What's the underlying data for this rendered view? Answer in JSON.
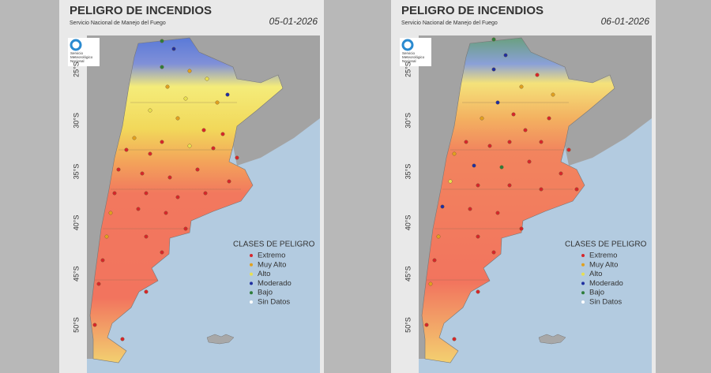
{
  "panels": [
    {
      "title": "PELIGRO DE INCENDIOS",
      "subtitle": "Servicio Nacional de Manejo del Fuego",
      "date": "05-01-2026",
      "logo": [
        "Servicio",
        "Meteorológico",
        "Nacional"
      ],
      "latitude_labels": [
        "25°S",
        "30°S",
        "35°S",
        "40°S",
        "45°S",
        "50°S"
      ],
      "legend": {
        "title": "CLASES DE PELIGRO",
        "items": [
          {
            "label": "Extremo",
            "color": "#d6262b"
          },
          {
            "label": "Muy Alto",
            "color": "#e0a020"
          },
          {
            "label": "Alto",
            "color": "#e8e050"
          },
          {
            "label": "Moderado",
            "color": "#1f2fa0"
          },
          {
            "label": "Bajo",
            "color": "#2e7d3a"
          },
          {
            "label": "Sin Datos",
            "color": "#ffffff"
          }
        ]
      }
    },
    {
      "title": "PELIGRO DE INCENDIOS",
      "subtitle": "Servicio Nacional de Manejo del Fuego",
      "date": "06-01-2026",
      "logo": [
        "Servicio",
        "Meteorológico",
        "Nacional"
      ],
      "latitude_labels": [
        "25°S",
        "30°S",
        "35°S",
        "40°S",
        "45°S",
        "50°S"
      ],
      "legend": {
        "title": "CLASES DE PELIGRO",
        "items": [
          {
            "label": "Extremo",
            "color": "#d6262b"
          },
          {
            "label": "Muy Alto",
            "color": "#e0a020"
          },
          {
            "label": "Alto",
            "color": "#e8e050"
          },
          {
            "label": "Moderado",
            "color": "#1f2fa0"
          },
          {
            "label": "Bajo",
            "color": "#2e7d3a"
          },
          {
            "label": "Sin Datos",
            "color": "#ffffff"
          }
        ]
      }
    }
  ]
}
